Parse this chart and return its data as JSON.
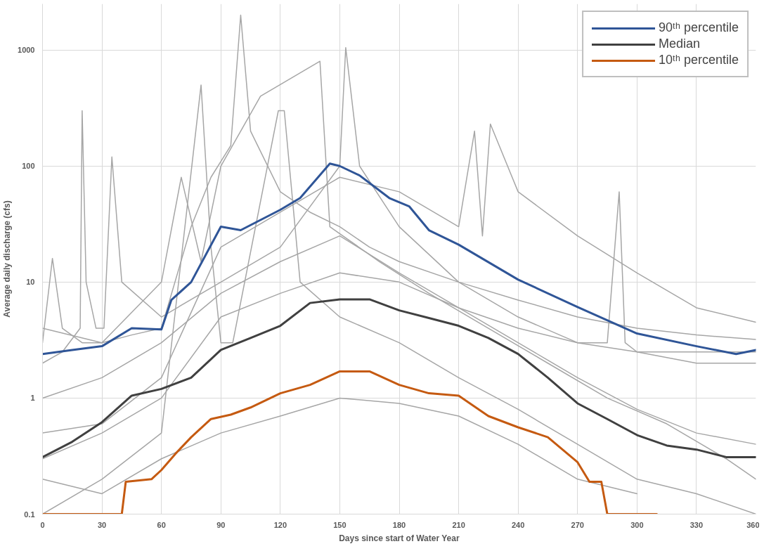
{
  "chart_data": {
    "type": "line",
    "xlabel": "Days since start of Water Year",
    "ylabel": "Average daily discharge (cfs)",
    "xlim": [
      0,
      360
    ],
    "xticks": [
      0,
      30,
      60,
      90,
      120,
      150,
      180,
      210,
      240,
      270,
      300,
      330,
      360
    ],
    "ylim": [
      0.1,
      2500
    ],
    "yticks": [
      0.1,
      1,
      10,
      100,
      1000
    ],
    "log": "y",
    "grid": true,
    "legend": "top right",
    "line_style": "solid",
    "marker": "none",
    "series": [
      {
        "color": "#a6a6a6",
        "x": [
          0,
          5,
          10,
          20,
          30,
          45,
          60,
          75,
          85,
          95,
          100,
          105,
          120,
          135,
          150,
          165,
          180,
          210,
          240,
          270,
          300,
          330,
          360
        ],
        "values": [
          3,
          16,
          4,
          3,
          3,
          3.5,
          4,
          30,
          80,
          150,
          2000,
          200,
          60,
          40,
          30,
          20,
          15,
          10,
          7,
          5,
          4,
          3.5,
          3.2
        ]
      },
      {
        "color": "#a6a6a6",
        "x": [
          0,
          30,
          60,
          90,
          120,
          150,
          180,
          210,
          218,
          222,
          226,
          240,
          270,
          300,
          330,
          360
        ],
        "values": [
          0.5,
          0.6,
          1.5,
          20,
          40,
          80,
          60,
          30,
          200,
          25,
          230,
          60,
          25,
          12,
          6,
          4.5
        ]
      },
      {
        "color": "#a6a6a6",
        "x": [
          0,
          10,
          19,
          20,
          22,
          27,
          31,
          35,
          40,
          60,
          90,
          120,
          150,
          153,
          160,
          180,
          210,
          240,
          270,
          300,
          330,
          360
        ],
        "values": [
          2,
          2.5,
          4,
          300,
          10,
          4,
          4,
          120,
          10,
          5,
          10,
          20,
          100,
          1050,
          100,
          30,
          10,
          5,
          3,
          2.5,
          2.5,
          2.5
        ]
      },
      {
        "color": "#a6a6a6",
        "x": [
          0,
          30,
          60,
          90,
          120,
          150,
          180,
          210,
          240,
          270,
          300
        ],
        "values": [
          0.2,
          0.15,
          0.3,
          0.5,
          0.7,
          1,
          0.9,
          0.7,
          0.4,
          0.2,
          0.15
        ]
      },
      {
        "color": "#a6a6a6",
        "x": [
          0,
          30,
          60,
          90,
          120,
          150,
          180,
          210,
          240,
          270,
          300,
          330,
          360
        ],
        "values": [
          1,
          1.5,
          3,
          8,
          15,
          25,
          12,
          6,
          3,
          1.5,
          0.8,
          0.5,
          0.4
        ]
      },
      {
        "color": "#a6a6a6",
        "x": [
          0,
          30,
          60,
          90,
          120,
          150,
          180,
          210,
          240,
          270,
          285,
          291,
          294,
          300,
          330,
          360
        ],
        "values": [
          0.3,
          0.5,
          1,
          5,
          8,
          12,
          10,
          6,
          4,
          3,
          3,
          60,
          3,
          2.5,
          2,
          2
        ]
      },
      {
        "color": "#a6a6a6",
        "x": [
          0,
          30,
          60,
          80,
          85,
          90,
          96,
          119,
          122,
          130,
          150,
          180,
          210,
          240,
          270,
          300,
          330,
          360
        ],
        "values": [
          0.1,
          0.2,
          0.5,
          500,
          20,
          3,
          3,
          300,
          300,
          10,
          5,
          3,
          1.5,
          0.8,
          0.4,
          0.2,
          0.15,
          0.1
        ]
      },
      {
        "color": "#a6a6a6",
        "x": [
          0,
          30,
          60,
          70,
          80,
          90,
          110,
          140,
          145,
          170,
          195,
          225,
          255,
          285,
          315,
          345,
          360
        ],
        "values": [
          4,
          3,
          10,
          80,
          15,
          100,
          400,
          800,
          30,
          15,
          8,
          4,
          2,
          1,
          0.6,
          0.3,
          0.2
        ]
      },
      {
        "name": "90ᵗʰ percentile",
        "color": "#2f5597",
        "x": [
          0,
          15,
          30,
          45,
          60,
          65,
          75,
          90,
          100,
          120,
          130,
          145,
          150,
          160,
          175,
          185,
          195,
          210,
          240,
          270,
          300,
          330,
          350,
          360
        ],
        "values": [
          2.4,
          2.6,
          2.8,
          4,
          3.9,
          7,
          10,
          30,
          28,
          42,
          53,
          105,
          100,
          83,
          53,
          45,
          28,
          21,
          10.5,
          6.1,
          3.6,
          2.8,
          2.4,
          2.6
        ]
      },
      {
        "name": "Median",
        "color": "#404040",
        "x": [
          0,
          15,
          30,
          45,
          60,
          75,
          90,
          105,
          120,
          135,
          150,
          165,
          180,
          195,
          210,
          225,
          240,
          255,
          270,
          285,
          300,
          315,
          330,
          345,
          360
        ],
        "values": [
          0.31,
          0.42,
          0.62,
          1.05,
          1.2,
          1.5,
          2.6,
          3.3,
          4.2,
          6.6,
          7.1,
          7.1,
          5.7,
          4.9,
          4.2,
          3.3,
          2.4,
          1.5,
          0.9,
          0.66,
          0.48,
          0.39,
          0.36,
          0.31,
          0.31
        ]
      },
      {
        "name": "10ᵗʰ percentile",
        "color": "#c55a11",
        "x": [
          0,
          40,
          42,
          55,
          60,
          67,
          75,
          85,
          95,
          105,
          120,
          135,
          150,
          165,
          180,
          195,
          210,
          225,
          240,
          255,
          270,
          276,
          282,
          285,
          310
        ],
        "values": [
          0.1,
          0.1,
          0.19,
          0.2,
          0.24,
          0.33,
          0.46,
          0.66,
          0.72,
          0.83,
          1.1,
          1.3,
          1.7,
          1.7,
          1.3,
          1.1,
          1.05,
          0.7,
          0.56,
          0.46,
          0.28,
          0.19,
          0.19,
          0.1,
          0.1
        ]
      }
    ]
  }
}
